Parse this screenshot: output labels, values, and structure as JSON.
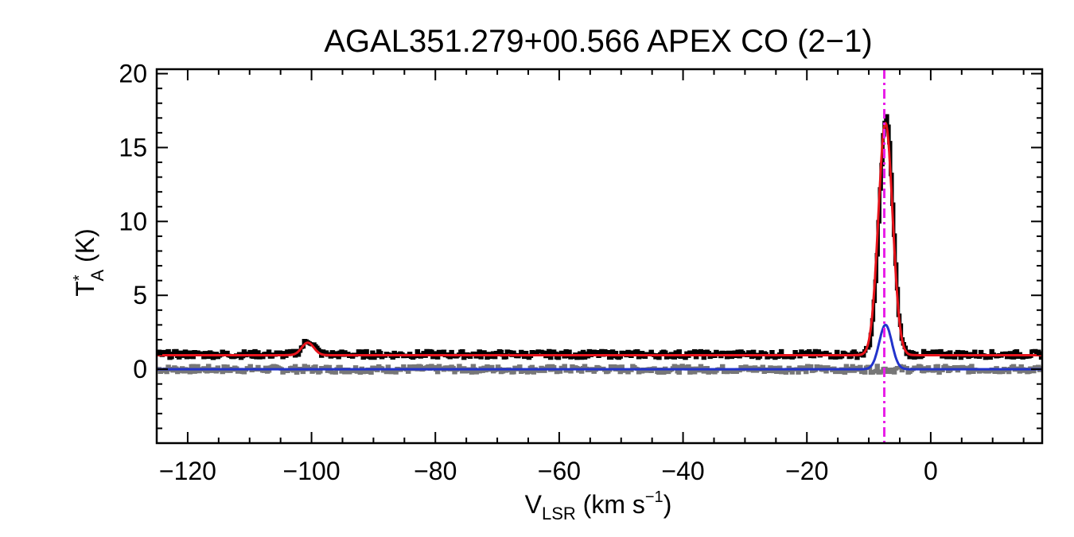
{
  "chart_data": {
    "type": "line",
    "title": "AGAL351.279+00.566  APEX CO (2−1)",
    "ylabel": {
      "main": "T",
      "sup": "*",
      "sub": "A",
      "unit": " (K)"
    },
    "xlabel": {
      "main": "V",
      "sub": "LSR",
      "unit": " (km s",
      "sup": "−1",
      "close": ")"
    },
    "xlim": [
      -125,
      18
    ],
    "ylim": [
      -5,
      20.3
    ],
    "xticks": [
      -120,
      -100,
      -80,
      -60,
      -40,
      -20,
      0
    ],
    "xtick_labels": [
      "−120",
      "−100",
      "−80",
      "−60",
      "−40",
      "−20",
      "0"
    ],
    "yticks": [
      0,
      5,
      10,
      15,
      20
    ],
    "ytick_labels": [
      "0",
      "5",
      "10",
      "15",
      "20"
    ],
    "reference_velocity": -7.5,
    "colors": {
      "spectrum": "#000000",
      "residual": "#777777",
      "fit_total": "#e8141c",
      "fit_component": "#2233cc",
      "reference_line": "#e81ee8"
    },
    "series": [
      {
        "style": "step",
        "color": "#000000",
        "offset": 1.0,
        "baseline_noise": 0.25,
        "components": [
          {
            "center": -7.3,
            "amplitude": 16.0,
            "fwhm": 2.6
          },
          {
            "center": -100.6,
            "amplitude": 0.95,
            "fwhm": 2.2
          }
        ]
      },
      {
        "style": "step",
        "color": "#777777",
        "offset": 0.0,
        "baseline_noise": 0.25,
        "components": []
      },
      {
        "style": "line",
        "color": "#e8141c",
        "offset": 0.95,
        "components": [
          {
            "center": -7.3,
            "amplitude": 15.7,
            "fwhm": 2.7
          },
          {
            "center": -100.6,
            "amplitude": 0.85,
            "fwhm": 2.3
          }
        ]
      },
      {
        "style": "line",
        "color": "#2233cc",
        "offset": 0.0,
        "components": [
          {
            "center": -7.3,
            "amplitude": 3.0,
            "fwhm": 2.4
          }
        ]
      }
    ],
    "grid": false,
    "legend": "none"
  }
}
